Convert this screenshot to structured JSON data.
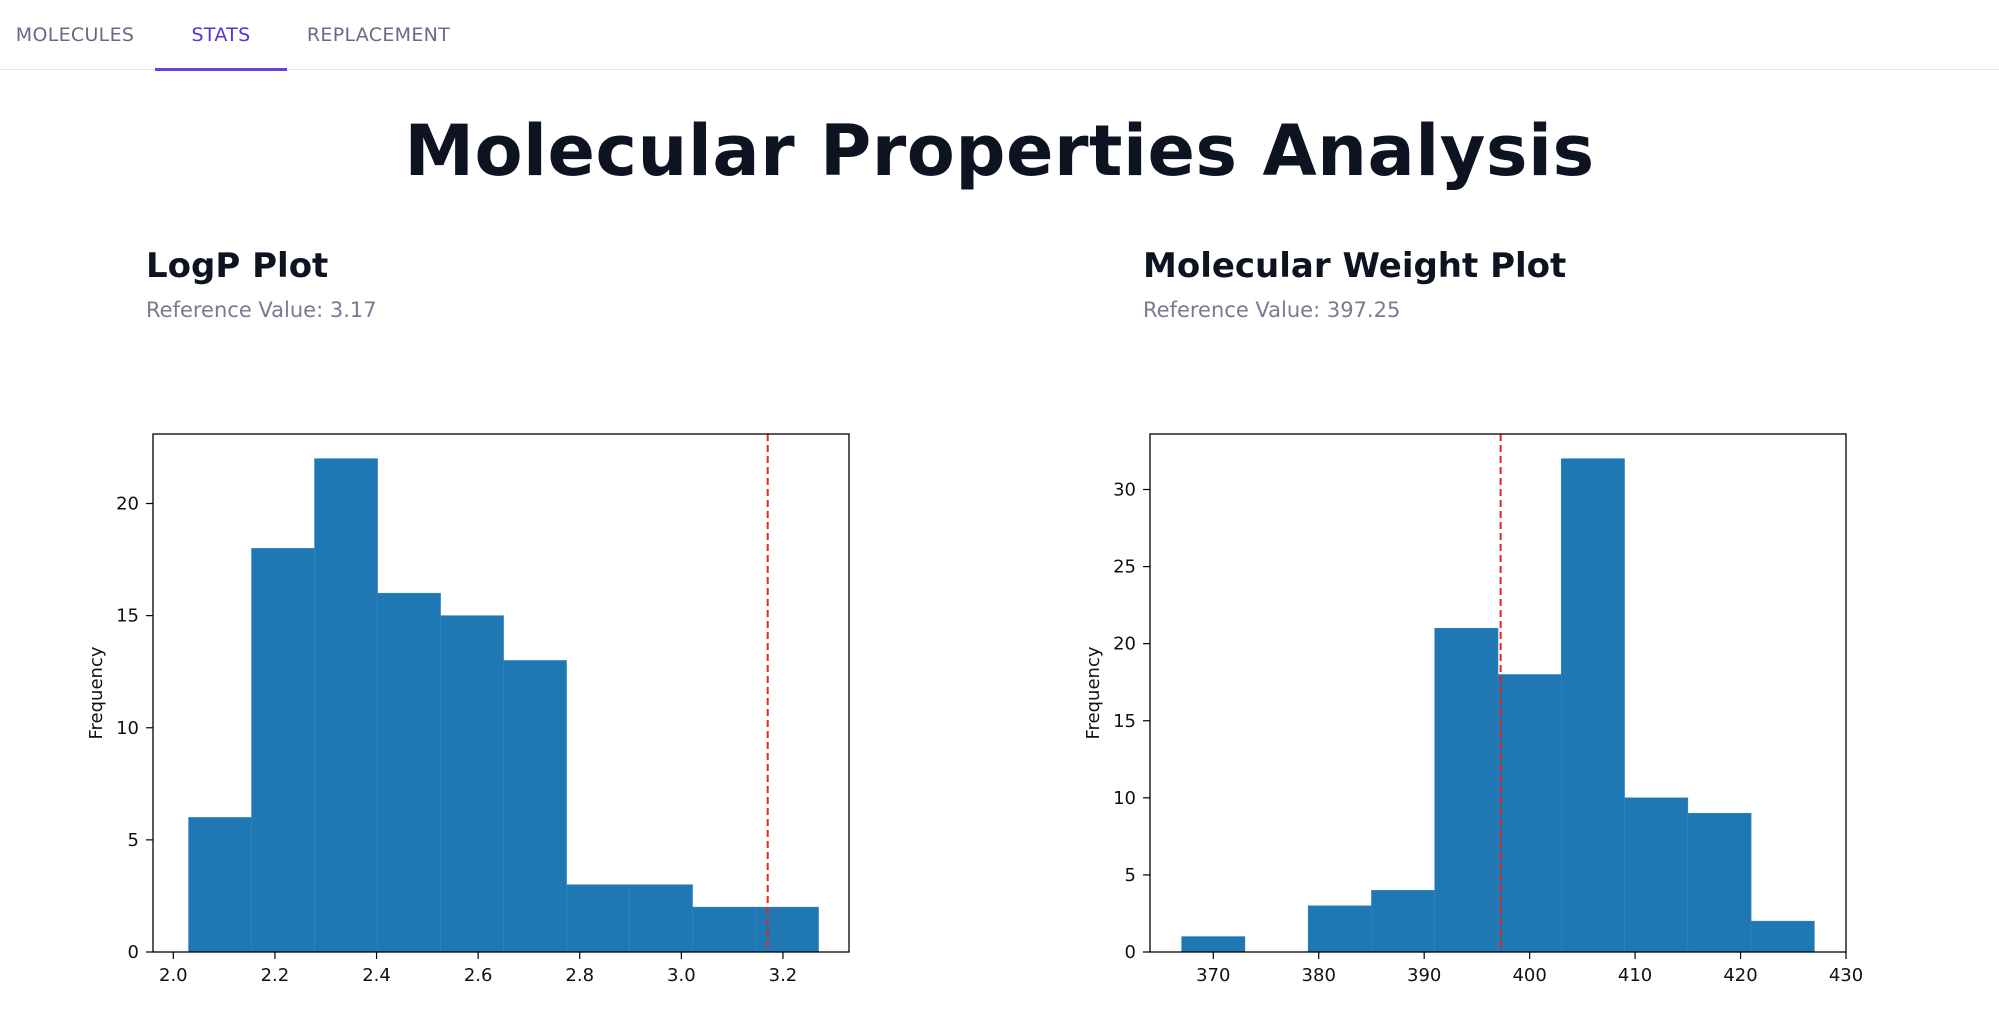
{
  "tabs": [
    {
      "label": "MOLECULES",
      "active": false
    },
    {
      "label": "STATS",
      "active": true
    },
    {
      "label": "REPLACEMENT",
      "active": false
    }
  ],
  "page_title": "Molecular Properties Analysis",
  "colors": {
    "accent": "#6a3de0",
    "bar": "#1f77b4",
    "reference_line": "#e3261c"
  },
  "plots": [
    {
      "title": "LogP Plot",
      "subtitle": "Reference Value: 3.17"
    },
    {
      "title": "Molecular Weight Plot",
      "subtitle": "Reference Value: 397.25"
    }
  ],
  "chart_data": [
    {
      "type": "bar",
      "title": "",
      "xlabel": "",
      "ylabel": "Frequency",
      "bin_edges": [
        2.03,
        2.154,
        2.278,
        2.402,
        2.526,
        2.65,
        2.774,
        2.898,
        3.022,
        3.146,
        3.27
      ],
      "values": [
        6,
        18,
        22,
        16,
        15,
        13,
        3,
        3,
        2,
        2
      ],
      "xlim": [
        1.96,
        3.33
      ],
      "ylim": [
        0,
        23.1
      ],
      "xticks": [
        "2.0",
        "2.2",
        "2.4",
        "2.6",
        "2.8",
        "3.0",
        "3.2"
      ],
      "xtick_values": [
        2.0,
        2.2,
        2.4,
        2.6,
        2.8,
        3.0,
        3.2
      ],
      "yticks": [
        "0",
        "5",
        "10",
        "15",
        "20"
      ],
      "ytick_values": [
        0,
        5,
        10,
        15,
        20
      ],
      "reference_line": 3.17,
      "grid": false
    },
    {
      "type": "bar",
      "title": "",
      "xlabel": "",
      "ylabel": "Frequency",
      "bin_edges": [
        367.0,
        373.0,
        379.0,
        385.0,
        391.0,
        397.0,
        403.0,
        409.0,
        415.0,
        421.0,
        427.0
      ],
      "values": [
        1,
        0,
        3,
        4,
        21,
        18,
        32,
        10,
        9,
        2
      ],
      "xlim": [
        364.0,
        430.0
      ],
      "ylim": [
        0,
        33.6
      ],
      "xticks": [
        "370",
        "380",
        "390",
        "400",
        "410",
        "420",
        "430"
      ],
      "xtick_values": [
        370,
        380,
        390,
        400,
        410,
        420,
        430
      ],
      "yticks": [
        "0",
        "5",
        "10",
        "15",
        "20",
        "25",
        "30"
      ],
      "ytick_values": [
        0,
        5,
        10,
        15,
        20,
        25,
        30
      ],
      "reference_line": 397.25,
      "grid": false
    }
  ]
}
